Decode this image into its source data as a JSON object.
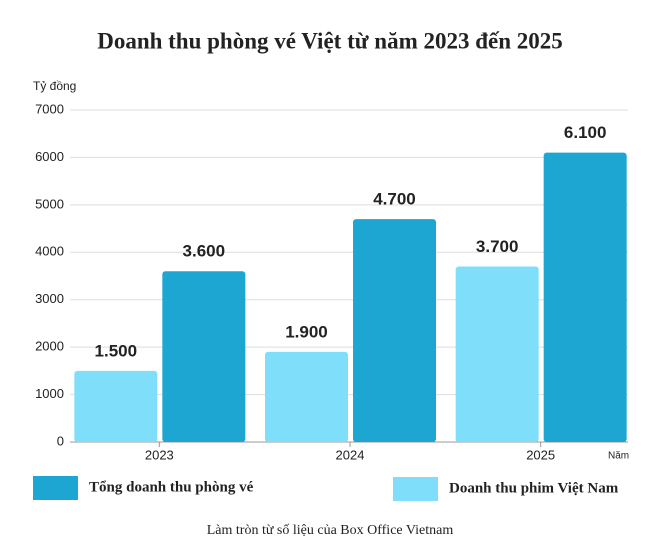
{
  "chart_data": {
    "type": "bar",
    "title": "Doanh thu phòng vé Việt từ năm 2023 đến 2025",
    "y_label": "Tỷ đồng",
    "x_label": "Năm",
    "note": "Làm tròn từ số liệu của Box Office Vietnam",
    "categories": [
      "2023",
      "2024",
      "2025"
    ],
    "series": [
      {
        "name": "Doanh thu phim Việt Nam",
        "color": "#7fdffb",
        "values": [
          1500,
          1900,
          3700
        ],
        "value_labels": [
          "1.500",
          "1.900",
          "3.700"
        ]
      },
      {
        "name": "Tổng doanh thu phòng vé",
        "color": "#1ea6d3",
        "values": [
          3600,
          4700,
          6100
        ],
        "value_labels": [
          "3.600",
          "4.700",
          "6.100"
        ]
      }
    ],
    "ylim": [
      0,
      7000
    ],
    "yticks": [
      0,
      1000,
      2000,
      3000,
      4000,
      5000,
      6000,
      7000
    ],
    "grid": true
  }
}
